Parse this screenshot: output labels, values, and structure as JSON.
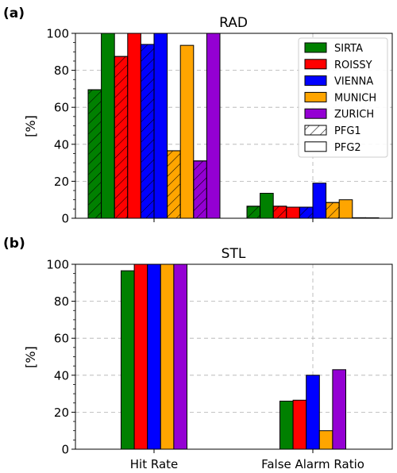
{
  "chart_data": [
    {
      "panel_label": "(a)",
      "title": "RAD",
      "type": "bar",
      "ylabel": "[%]",
      "ylim": [
        0,
        100
      ],
      "yticks": [
        0,
        20,
        40,
        60,
        80,
        100
      ],
      "categories": [
        "Hit Rate",
        "False Alarm Ratio"
      ],
      "grid": true,
      "legend_position": "top-right",
      "legend": [
        {
          "label": "SIRTA",
          "color": "#008000",
          "style": "solid"
        },
        {
          "label": "ROISSY",
          "color": "#ff0000",
          "style": "solid"
        },
        {
          "label": "VIENNA",
          "color": "#0000ff",
          "style": "solid"
        },
        {
          "label": "MUNICH",
          "color": "#ffa500",
          "style": "solid"
        },
        {
          "label": "ZURICH",
          "color": "#9400d3",
          "style": "solid"
        },
        {
          "label": "PFG1",
          "color": "#ffffff",
          "style": "hatched"
        },
        {
          "label": "PFG2",
          "color": "#ffffff",
          "style": "plain"
        }
      ],
      "series": [
        {
          "name": "SIRTA",
          "pfg": "PFG1",
          "color": "#008000",
          "hatched": true,
          "values": [
            69.5,
            6.5
          ]
        },
        {
          "name": "SIRTA",
          "pfg": "PFG2",
          "color": "#008000",
          "hatched": false,
          "values": [
            100,
            13.5
          ]
        },
        {
          "name": "ROISSY",
          "pfg": "PFG1",
          "color": "#ff0000",
          "hatched": true,
          "values": [
            87.5,
            6.5
          ]
        },
        {
          "name": "ROISSY",
          "pfg": "PFG2",
          "color": "#ff0000",
          "hatched": false,
          "values": [
            100,
            6
          ]
        },
        {
          "name": "VIENNA",
          "pfg": "PFG1",
          "color": "#0000ff",
          "hatched": true,
          "values": [
            94,
            6
          ]
        },
        {
          "name": "VIENNA",
          "pfg": "PFG2",
          "color": "#0000ff",
          "hatched": false,
          "values": [
            100,
            19
          ]
        },
        {
          "name": "MUNICH",
          "pfg": "PFG1",
          "color": "#ffa500",
          "hatched": true,
          "values": [
            36.5,
            8.5
          ]
        },
        {
          "name": "MUNICH",
          "pfg": "PFG2",
          "color": "#ffa500",
          "hatched": false,
          "values": [
            93.5,
            10
          ]
        },
        {
          "name": "ZURICH",
          "pfg": "PFG1",
          "color": "#9400d3",
          "hatched": true,
          "values": [
            31,
            0
          ]
        },
        {
          "name": "ZURICH",
          "pfg": "PFG2",
          "color": "#9400d3",
          "hatched": false,
          "values": [
            100,
            0
          ]
        }
      ]
    },
    {
      "panel_label": "(b)",
      "title": "STL",
      "type": "bar",
      "ylabel": "[%]",
      "ylim": [
        0,
        100
      ],
      "yticks": [
        0,
        20,
        40,
        60,
        80,
        100
      ],
      "categories": [
        "Hit Rate",
        "False Alarm Ratio"
      ],
      "xticklabels": [
        "Hit Rate",
        "False Alarm Ratio"
      ],
      "grid": true,
      "series": [
        {
          "name": "SIRTA",
          "color": "#008000",
          "hatched": false,
          "values": [
            96.5,
            26
          ]
        },
        {
          "name": "ROISSY",
          "color": "#ff0000",
          "hatched": false,
          "values": [
            100,
            26.5
          ]
        },
        {
          "name": "VIENNA",
          "color": "#0000ff",
          "hatched": false,
          "values": [
            100,
            40
          ]
        },
        {
          "name": "MUNICH",
          "color": "#ffa500",
          "hatched": false,
          "values": [
            100,
            10
          ]
        },
        {
          "name": "ZURICH",
          "color": "#9400d3",
          "hatched": false,
          "values": [
            100,
            43
          ]
        }
      ]
    }
  ]
}
